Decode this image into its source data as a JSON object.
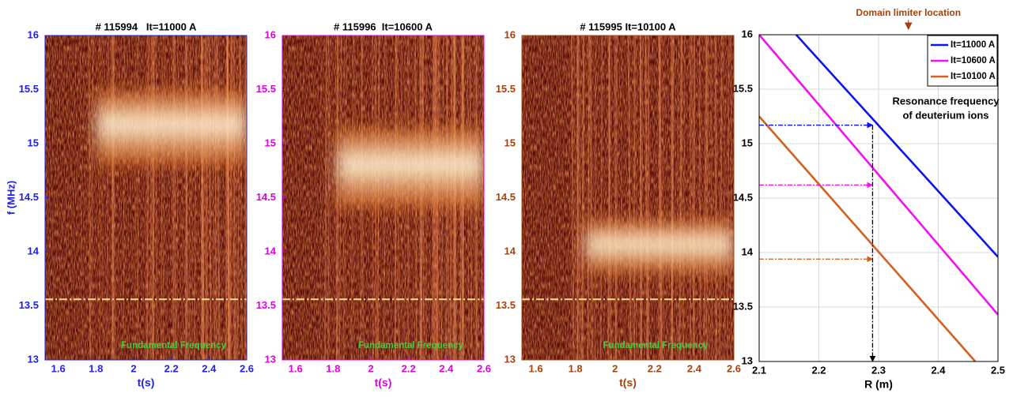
{
  "chart_data": [
    {
      "type": "spectrogram",
      "title": "# 115994   It=11000 A",
      "xlabel": "t(s)",
      "ylabel": "f (MHz)",
      "xlim": [
        1.53,
        2.6
      ],
      "ylim": [
        13,
        16
      ],
      "xticks": [
        1.6,
        1.8,
        2,
        2.2,
        2.4,
        2.6
      ],
      "yticks": [
        13,
        13.5,
        14,
        14.5,
        15,
        15.5,
        16
      ],
      "axis_color": "#1f1fe6",
      "bright_band": {
        "t": [
          1.8,
          2.6
        ],
        "f": [
          14.8,
          15.5
        ]
      },
      "fundamental_frequency": 13.56,
      "annotation": "Fundamental Frequency"
    },
    {
      "type": "spectrogram",
      "title": "# 115996  It=10600 A",
      "xlabel": "t(s)",
      "xlim": [
        1.53,
        2.6
      ],
      "ylim": [
        13,
        16
      ],
      "xticks": [
        1.6,
        1.8,
        2,
        2.2,
        2.4,
        2.6
      ],
      "yticks": [
        13,
        13.5,
        14,
        14.5,
        15,
        15.5,
        16
      ],
      "axis_color": "#e000e0",
      "bright_band": {
        "t": [
          1.82,
          2.6
        ],
        "f": [
          14.4,
          15.15
        ]
      },
      "fundamental_frequency": 13.56,
      "annotation": "Fundamental Frequency"
    },
    {
      "type": "spectrogram",
      "title": "# 115995 It=10100 A",
      "xlabel": "t(s)",
      "xlim": [
        1.53,
        2.6
      ],
      "ylim": [
        13,
        16
      ],
      "xticks": [
        1.6,
        1.8,
        2,
        2.2,
        2.4,
        2.6
      ],
      "yticks": [
        13,
        13.5,
        14,
        14.5,
        15,
        15.5,
        16
      ],
      "axis_color": "#a8420c",
      "bright_band": {
        "t": [
          1.85,
          2.6
        ],
        "f": [
          13.8,
          14.3
        ]
      },
      "fundamental_frequency": 13.56,
      "annotation": "Fundamental Frequency"
    },
    {
      "type": "line",
      "xlabel": "R (m)",
      "xlim": [
        2.1,
        2.5
      ],
      "ylim": [
        13,
        16
      ],
      "xticks": [
        2.1,
        2.2,
        2.3,
        2.4,
        2.5
      ],
      "yticks": [
        13,
        13.5,
        14,
        14.5,
        15,
        15.5,
        16
      ],
      "grid": true,
      "legend": "upper right",
      "series": [
        {
          "name": "It=11000 A",
          "color": "#0a14f0",
          "x": [
            2.162,
            2.5
          ],
          "values": [
            16,
            13.96
          ]
        },
        {
          "name": "It=10600 A",
          "color": "#f010f0",
          "x": [
            2.1,
            2.5
          ],
          "values": [
            16,
            13.43
          ]
        },
        {
          "name": "It=10100 A",
          "color": "#d2601e",
          "x": [
            2.1,
            2.462
          ],
          "values": [
            15.25,
            13
          ]
        }
      ],
      "resonance_R": 2.29,
      "resonance_f": [
        15.17,
        14.62,
        13.94
      ],
      "annotation": [
        "Resonance frequency",
        "of deuterium ions"
      ],
      "limiter_label": "Domain limiter location",
      "limiter_R": 2.35,
      "limiter_color": "#a8420c"
    }
  ]
}
